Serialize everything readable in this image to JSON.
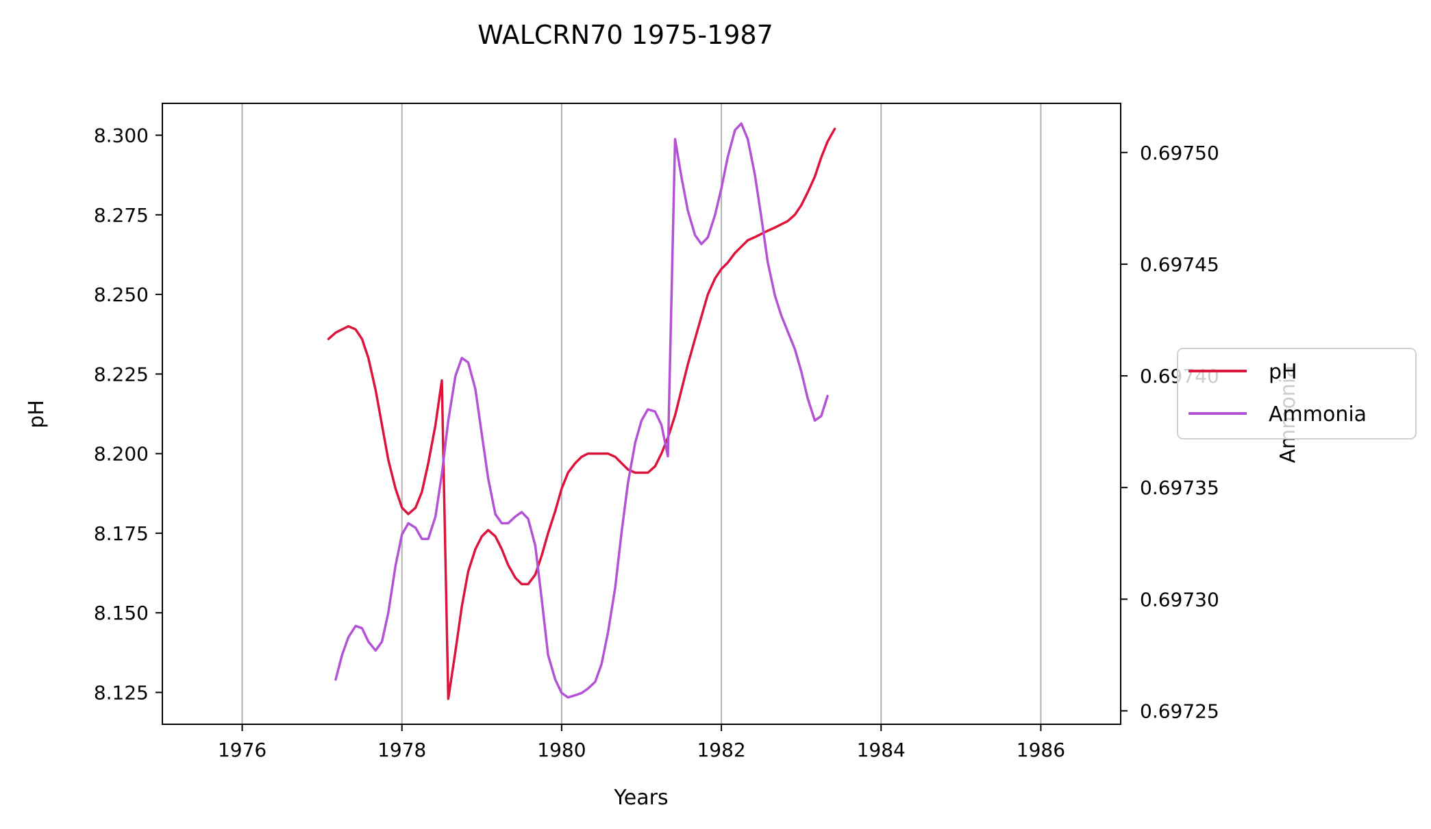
{
  "chart_data": {
    "type": "line",
    "title": "WALCRN70 1975-1987",
    "xlabel": "Years",
    "ylabel_left": "pH",
    "ylabel_right": "Ammonia",
    "xlim": [
      1975,
      1987
    ],
    "ylim_left": [
      8.115,
      8.31
    ],
    "ylim_right": [
      0.697244,
      0.697522
    ],
    "x_ticks": [
      1976,
      1978,
      1980,
      1982,
      1984,
      1986
    ],
    "y_left_ticks": [
      "8.125",
      "8.150",
      "8.175",
      "8.200",
      "8.225",
      "8.250",
      "8.275",
      "8.300"
    ],
    "y_right_ticks": [
      "0.69725",
      "0.69730",
      "0.69735",
      "0.69740",
      "0.69745",
      "0.69750"
    ],
    "grid": "vertical",
    "legend_position": "right-center, outside axes",
    "series": [
      {
        "name": "pH",
        "axis": "left",
        "color": "#dc143c",
        "points": [
          [
            1977.08,
            8.236
          ],
          [
            1977.17,
            8.238
          ],
          [
            1977.25,
            8.239
          ],
          [
            1977.33,
            8.24
          ],
          [
            1977.42,
            8.239
          ],
          [
            1977.5,
            8.236
          ],
          [
            1977.58,
            8.23
          ],
          [
            1977.67,
            8.22
          ],
          [
            1977.75,
            8.209
          ],
          [
            1977.83,
            8.198
          ],
          [
            1977.92,
            8.189
          ],
          [
            1978.0,
            8.183
          ],
          [
            1978.08,
            8.181
          ],
          [
            1978.17,
            8.183
          ],
          [
            1978.25,
            8.188
          ],
          [
            1978.33,
            8.197
          ],
          [
            1978.42,
            8.209
          ],
          [
            1978.5,
            8.223
          ],
          [
            1978.58,
            8.123
          ],
          [
            1978.67,
            8.138
          ],
          [
            1978.75,
            8.152
          ],
          [
            1978.83,
            8.163
          ],
          [
            1978.92,
            8.17
          ],
          [
            1979.0,
            8.174
          ],
          [
            1979.08,
            8.176
          ],
          [
            1979.17,
            8.174
          ],
          [
            1979.25,
            8.17
          ],
          [
            1979.33,
            8.165
          ],
          [
            1979.42,
            8.161
          ],
          [
            1979.5,
            8.159
          ],
          [
            1979.58,
            8.159
          ],
          [
            1979.67,
            8.162
          ],
          [
            1979.75,
            8.168
          ],
          [
            1979.83,
            8.175
          ],
          [
            1979.92,
            8.182
          ],
          [
            1980.0,
            8.189
          ],
          [
            1980.08,
            8.194
          ],
          [
            1980.17,
            8.197
          ],
          [
            1980.25,
            8.199
          ],
          [
            1980.33,
            8.2
          ],
          [
            1980.42,
            8.2
          ],
          [
            1980.5,
            8.2
          ],
          [
            1980.58,
            8.2
          ],
          [
            1980.67,
            8.199
          ],
          [
            1980.75,
            8.197
          ],
          [
            1980.83,
            8.195
          ],
          [
            1980.92,
            8.194
          ],
          [
            1981.0,
            8.194
          ],
          [
            1981.08,
            8.194
          ],
          [
            1981.17,
            8.196
          ],
          [
            1981.25,
            8.2
          ],
          [
            1981.33,
            8.205
          ],
          [
            1981.42,
            8.212
          ],
          [
            1981.5,
            8.22
          ],
          [
            1981.58,
            8.228
          ],
          [
            1981.67,
            8.236
          ],
          [
            1981.75,
            8.243
          ],
          [
            1981.83,
            8.25
          ],
          [
            1981.92,
            8.255
          ],
          [
            1982.0,
            8.258
          ],
          [
            1982.08,
            8.26
          ],
          [
            1982.17,
            8.263
          ],
          [
            1982.25,
            8.265
          ],
          [
            1982.33,
            8.267
          ],
          [
            1982.42,
            8.268
          ],
          [
            1982.5,
            8.269
          ],
          [
            1982.58,
            8.27
          ],
          [
            1982.67,
            8.271
          ],
          [
            1982.75,
            8.272
          ],
          [
            1982.83,
            8.273
          ],
          [
            1982.92,
            8.275
          ],
          [
            1983.0,
            8.278
          ],
          [
            1983.08,
            8.282
          ],
          [
            1983.17,
            8.287
          ],
          [
            1983.25,
            8.293
          ],
          [
            1983.33,
            8.298
          ],
          [
            1983.42,
            8.302
          ]
        ]
      },
      {
        "name": "Ammonia",
        "axis": "right",
        "color": "#b452d6",
        "points": [
          [
            1977.17,
            0.697264
          ],
          [
            1977.25,
            0.697275
          ],
          [
            1977.33,
            0.697283
          ],
          [
            1977.42,
            0.697288
          ],
          [
            1977.5,
            0.697287
          ],
          [
            1977.58,
            0.697281
          ],
          [
            1977.67,
            0.697277
          ],
          [
            1977.75,
            0.697281
          ],
          [
            1977.83,
            0.697294
          ],
          [
            1977.92,
            0.697315
          ],
          [
            1978.0,
            0.697329
          ],
          [
            1978.08,
            0.697334
          ],
          [
            1978.17,
            0.697332
          ],
          [
            1978.25,
            0.697327
          ],
          [
            1978.33,
            0.697327
          ],
          [
            1978.42,
            0.697337
          ],
          [
            1978.5,
            0.697356
          ],
          [
            1978.58,
            0.69738
          ],
          [
            1978.67,
            0.6974
          ],
          [
            1978.75,
            0.697408
          ],
          [
            1978.83,
            0.697406
          ],
          [
            1978.92,
            0.697394
          ],
          [
            1979.0,
            0.697374
          ],
          [
            1979.08,
            0.697354
          ],
          [
            1979.17,
            0.697338
          ],
          [
            1979.25,
            0.697334
          ],
          [
            1979.33,
            0.697334
          ],
          [
            1979.42,
            0.697337
          ],
          [
            1979.5,
            0.697339
          ],
          [
            1979.58,
            0.697336
          ],
          [
            1979.67,
            0.697324
          ],
          [
            1979.75,
            0.6973
          ],
          [
            1979.83,
            0.697275
          ],
          [
            1979.92,
            0.697264
          ],
          [
            1980.0,
            0.697258
          ],
          [
            1980.08,
            0.697256
          ],
          [
            1980.17,
            0.697257
          ],
          [
            1980.25,
            0.697258
          ],
          [
            1980.33,
            0.69726
          ],
          [
            1980.42,
            0.697263
          ],
          [
            1980.5,
            0.697271
          ],
          [
            1980.58,
            0.697285
          ],
          [
            1980.67,
            0.697305
          ],
          [
            1980.75,
            0.69733
          ],
          [
            1980.83,
            0.697352
          ],
          [
            1980.92,
            0.69737
          ],
          [
            1981.0,
            0.69738
          ],
          [
            1981.08,
            0.697385
          ],
          [
            1981.17,
            0.697384
          ],
          [
            1981.25,
            0.697378
          ],
          [
            1981.33,
            0.697364
          ],
          [
            1981.42,
            0.697506
          ],
          [
            1981.5,
            0.697489
          ],
          [
            1981.58,
            0.697474
          ],
          [
            1981.67,
            0.697463
          ],
          [
            1981.75,
            0.697459
          ],
          [
            1981.83,
            0.697462
          ],
          [
            1981.92,
            0.697472
          ],
          [
            1982.0,
            0.697484
          ],
          [
            1982.08,
            0.697498
          ],
          [
            1982.17,
            0.69751
          ],
          [
            1982.25,
            0.697513
          ],
          [
            1982.33,
            0.697506
          ],
          [
            1982.42,
            0.69749
          ],
          [
            1982.5,
            0.697471
          ],
          [
            1982.58,
            0.697451
          ],
          [
            1982.67,
            0.697436
          ],
          [
            1982.75,
            0.697427
          ],
          [
            1982.83,
            0.69742
          ],
          [
            1982.92,
            0.697412
          ],
          [
            1983.0,
            0.697402
          ],
          [
            1983.08,
            0.69739
          ],
          [
            1983.17,
            0.69738
          ],
          [
            1983.25,
            0.697382
          ],
          [
            1983.33,
            0.697391
          ]
        ]
      }
    ]
  }
}
